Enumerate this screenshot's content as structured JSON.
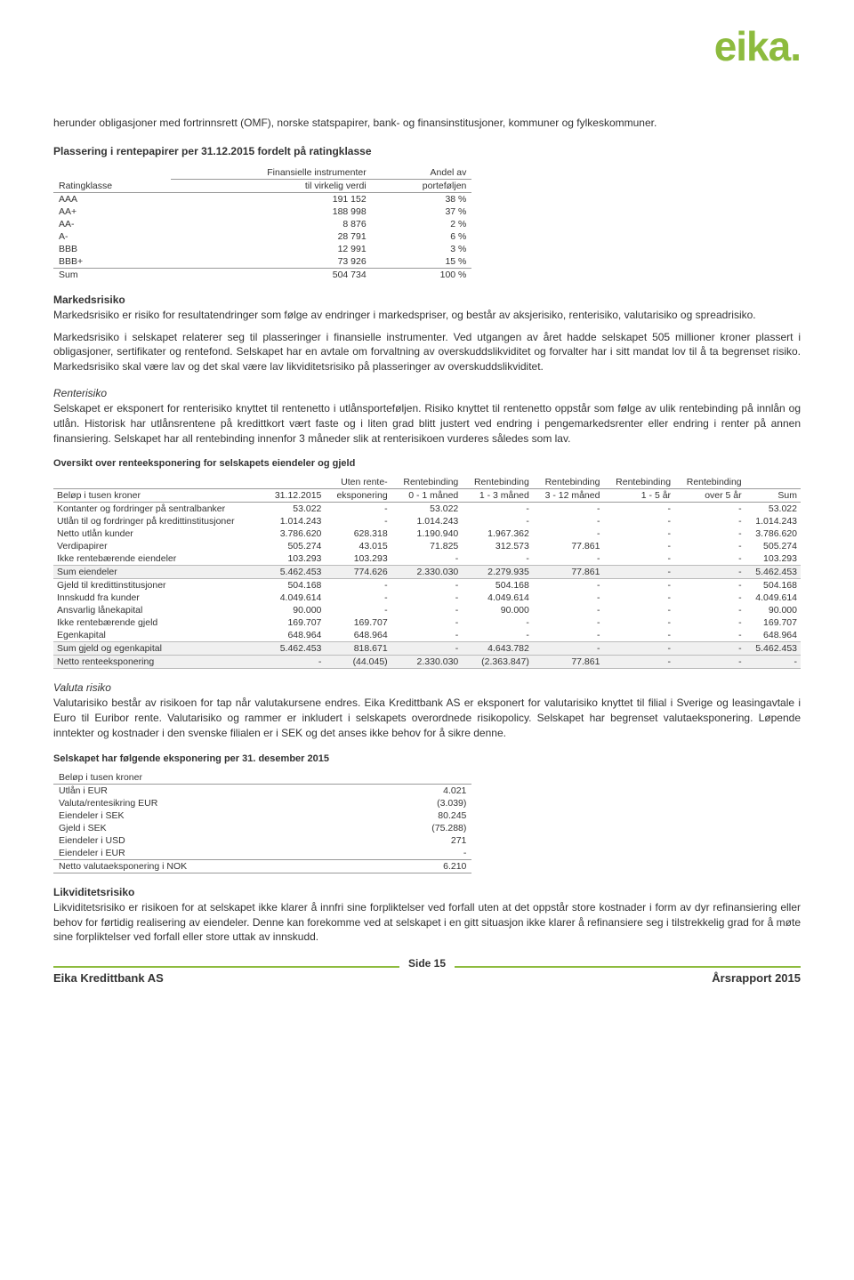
{
  "logo_text": "eika.",
  "intro_para": "herunder obligasjoner med fortrinnsrett (OMF), norske statspapirer, bank- og finansinstitusjoner, kommuner og fylkeskommuner.",
  "rating_title": "Plassering i rentepapirer per 31.12.2015 fordelt på ratingklasse",
  "rating_headers": {
    "col1": "Ratingklasse",
    "col2a": "Finansielle instrumenter",
    "col2b": "til virkelig verdi",
    "col3a": "Andel av",
    "col3b": "porteføljen"
  },
  "rating_rows": [
    {
      "k": "AAA",
      "v": "191 152",
      "p": "38 %"
    },
    {
      "k": "AA+",
      "v": "188 998",
      "p": "37 %"
    },
    {
      "k": "AA-",
      "v": "8 876",
      "p": "2 %"
    },
    {
      "k": "A-",
      "v": "28 791",
      "p": "6 %"
    },
    {
      "k": "BBB",
      "v": "12 991",
      "p": "3 %"
    },
    {
      "k": "BBB+",
      "v": "73 926",
      "p": "15 %"
    }
  ],
  "rating_total": {
    "k": "Sum",
    "v": "504 734",
    "p": "100 %"
  },
  "markedsrisiko_heading": "Markedsrisiko",
  "markedsrisiko_p1": "Markedsrisiko er risiko for resultatendringer som følge av endringer i markedspriser, og består av aksjerisiko, renterisiko, valutarisiko og spreadrisiko.",
  "markedsrisiko_p2": "Markedsrisiko i selskapet relaterer seg til plasseringer i finansielle instrumenter. Ved utgangen av året hadde selskapet 505 millioner kroner plassert i obligasjoner, sertifikater og rentefond. Selskapet har en avtale om forvaltning av overskuddslikviditet og forvalter har i sitt mandat lov til å ta begrenset risiko. Markedsrisiko skal være lav og det skal være lav likviditetsrisiko på plasseringer av overskuddslikviditet.",
  "renterisiko_heading": "Renterisiko",
  "renterisiko_p": "Selskapet er eksponert for renterisiko knyttet til rentenetto i utlånsporteføljen. Risiko knyttet til rentenetto oppstår som følge av ulik rentebinding på innlån og utlån. Historisk har utlånsrentene på kredittkort vært faste og i liten grad blitt justert ved endring i pengemarkedsrenter eller endring i renter på annen finansiering. Selskapet har all rentebinding innenfor 3 måneder slik at renterisikoen vurderes således som lav.",
  "exposure_caption": "Oversikt over renteeksponering for selskapets eiendeler og gjeld",
  "exposure_headers": {
    "c1": "Beløp i tusen kroner",
    "c2": "31.12.2015",
    "c3a": "Uten rente-",
    "c3b": "eksponering",
    "c4a": "Rentebinding",
    "c4b": "0 - 1 måned",
    "c5a": "Rentebinding",
    "c5b": "1 - 3 måned",
    "c6a": "Rentebinding",
    "c6b": "3 - 12 måned",
    "c7a": "Rentebinding",
    "c7b": "1 - 5 år",
    "c8a": "Rentebinding",
    "c8b": "over 5 år",
    "c9": "Sum"
  },
  "exposure_rows": [
    {
      "n": "Kontanter og fordringer på sentralbanker",
      "v": [
        "53.022",
        "-",
        "53.022",
        "-",
        "-",
        "-",
        "-",
        "53.022"
      ]
    },
    {
      "n": "Utlån til og fordringer på kredittinstitusjoner",
      "v": [
        "1.014.243",
        "-",
        "1.014.243",
        "-",
        "-",
        "-",
        "-",
        "1.014.243"
      ]
    },
    {
      "n": "Netto utlån kunder",
      "v": [
        "3.786.620",
        "628.318",
        "1.190.940",
        "1.967.362",
        "-",
        "-",
        "-",
        "3.786.620"
      ]
    },
    {
      "n": "Verdipapirer",
      "v": [
        "505.274",
        "43.015",
        "71.825",
        "312.573",
        "77.861",
        "-",
        "-",
        "505.274"
      ]
    },
    {
      "n": "Ikke rentebærende eiendeler",
      "v": [
        "103.293",
        "103.293",
        "-",
        "-",
        "-",
        "-",
        "-",
        "103.293"
      ]
    }
  ],
  "exposure_sum1": {
    "n": "Sum eiendeler",
    "v": [
      "5.462.453",
      "774.626",
      "2.330.030",
      "2.279.935",
      "77.861",
      "-",
      "-",
      "5.462.453"
    ]
  },
  "exposure_rows2": [
    {
      "n": "Gjeld til kredittinstitusjoner",
      "v": [
        "504.168",
        "-",
        "-",
        "504.168",
        "-",
        "-",
        "-",
        "504.168"
      ]
    },
    {
      "n": "Innskudd fra kunder",
      "v": [
        "4.049.614",
        "-",
        "-",
        "4.049.614",
        "-",
        "-",
        "-",
        "4.049.614"
      ]
    },
    {
      "n": "Ansvarlig lånekapital",
      "v": [
        "90.000",
        "-",
        "-",
        "90.000",
        "-",
        "-",
        "-",
        "90.000"
      ]
    },
    {
      "n": "Ikke rentebærende gjeld",
      "v": [
        "169.707",
        "169.707",
        "-",
        "-",
        "-",
        "-",
        "-",
        "169.707"
      ]
    },
    {
      "n": "Egenkapital",
      "v": [
        "648.964",
        "648.964",
        "-",
        "-",
        "-",
        "-",
        "-",
        "648.964"
      ]
    }
  ],
  "exposure_sum2": {
    "n": "Sum gjeld og egenkapital",
    "v": [
      "5.462.453",
      "818.671",
      "-",
      "4.643.782",
      "-",
      "-",
      "-",
      "5.462.453"
    ]
  },
  "exposure_netto": {
    "n": "Netto renteeksponering",
    "v": [
      "-",
      "(44.045)",
      "2.330.030",
      "(2.363.847)",
      "77.861",
      "-",
      "-",
      "-"
    ]
  },
  "valuta_heading": "Valuta risiko",
  "valuta_p": "Valutarisiko består av risikoen for tap når valutakursene endres. Eika Kredittbank AS er eksponert for valutarisiko knyttet til filial i Sverige og leasingavtale i Euro til Euribor rente. Valutarisiko og rammer er inkludert i selskapets overordnede risikopolicy. Selskapet har begrenset valutaeksponering. Løpende inntekter og kostnader i den svenske filialen er i SEK og det anses ikke behov for å sikre denne.",
  "currency_caption": "Selskapet har følgende eksponering per 31. desember 2015",
  "currency_header": "Beløp i tusen kroner",
  "currency_rows": [
    {
      "k": "Utlån i EUR",
      "v": "4.021"
    },
    {
      "k": "Valuta/rentesikring EUR",
      "v": "(3.039)"
    },
    {
      "k": "Eiendeler i SEK",
      "v": "80.245"
    },
    {
      "k": "Gjeld i SEK",
      "v": "(75.288)"
    },
    {
      "k": "Eiendeler i USD",
      "v": "271"
    },
    {
      "k": "Eiendeler i EUR",
      "v": "-"
    }
  ],
  "currency_total": {
    "k": "Netto valutaeksponering i NOK",
    "v": "6.210"
  },
  "likviditet_heading": "Likviditetsrisiko",
  "likviditet_p": "Likviditetsrisiko er risikoen for at selskapet ikke klarer å innfri sine forpliktelser ved forfall uten at det oppstår store kostnader i form av dyr refinansiering eller behov for førtidig realisering av eiendeler. Denne kan forekomme ved at selskapet i en gitt situasjon ikke klarer å refinansiere seg i tilstrekkelig grad for å møte sine forpliktelser ved forfall eller store uttak av innskudd.",
  "footer": {
    "company": "Eika Kredittbank AS",
    "page": "Side 15",
    "report": "Årsrapport 2015"
  }
}
